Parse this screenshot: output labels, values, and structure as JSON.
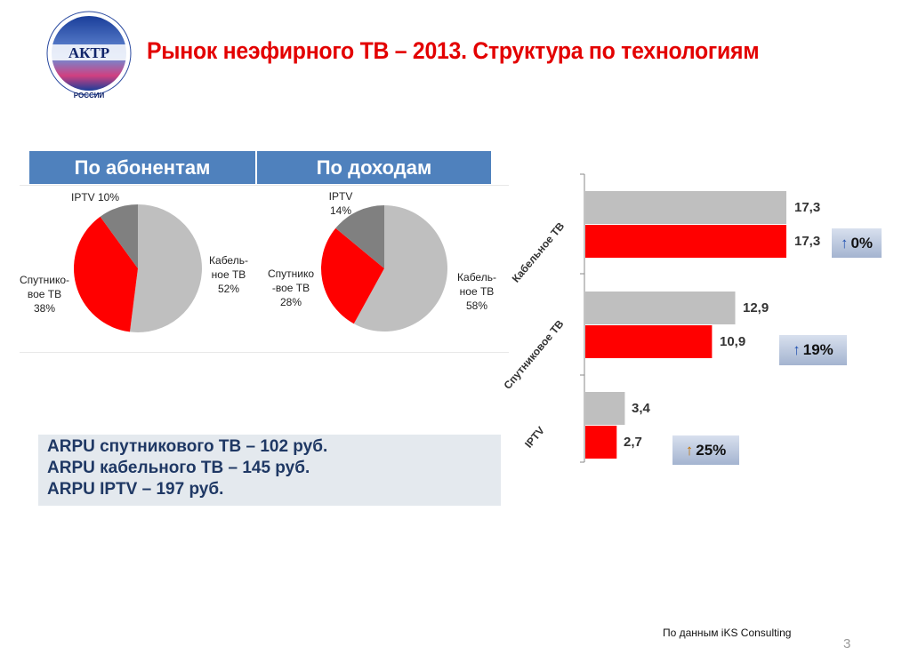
{
  "title": "Рынок неэфирного ТВ – 2013. Структура по технологиям",
  "logo": {
    "text_main": "АКТР",
    "text_arc": "АССОЦИАЦИЯ КАБЕЛЬНОГО ТЕЛЕВИДЕНИЯ",
    "text_bottom": "РОССИИ"
  },
  "headers": [
    "По абонентам",
    "По доходам"
  ],
  "colors": {
    "cable": "#bfbfbf",
    "satellite": "#ff0000",
    "iptv": "#808080",
    "header": "#4f81bd",
    "title": "#e30000"
  },
  "chart_data": [
    {
      "type": "pie",
      "title": "По абонентам",
      "slices": [
        {
          "label": "Кабельное ТВ",
          "value": 52,
          "text": [
            "Кабель-",
            "ное ТВ",
            "52%"
          ],
          "color": "#bfbfbf"
        },
        {
          "label": "Спутниковое ТВ",
          "value": 38,
          "text": [
            "Спутнико-",
            "вое ТВ",
            "38%"
          ],
          "color": "#ff0000"
        },
        {
          "label": "IPTV",
          "value": 10,
          "text": [
            "IPTV 10%"
          ],
          "color": "#808080"
        }
      ]
    },
    {
      "type": "pie",
      "title": "По доходам",
      "slices": [
        {
          "label": "Кабельное ТВ",
          "value": 58,
          "text": [
            "Кабель-",
            "ное ТВ",
            "58%"
          ],
          "color": "#bfbfbf"
        },
        {
          "label": "Спутниковое ТВ",
          "value": 28,
          "text": [
            "Спутнико",
            "-вое ТВ",
            "28%"
          ],
          "color": "#ff0000"
        },
        {
          "label": "IPTV",
          "value": 14,
          "text": [
            "IPTV",
            "14%"
          ],
          "color": "#808080"
        }
      ]
    },
    {
      "type": "bar",
      "orientation": "horizontal",
      "categories": [
        "Кабельное ТВ",
        "Спутниковое ТВ",
        "IPTV"
      ],
      "series": [
        {
          "values": [
            17.3,
            12.9,
            3.4
          ],
          "labels": [
            "17,3",
            "12,9",
            "3,4"
          ],
          "color": "#bfbfbf"
        },
        {
          "values": [
            17.3,
            10.9,
            2.7
          ],
          "labels": [
            "17,3",
            "10,9",
            "2,7"
          ],
          "color": "#ff0000"
        }
      ],
      "annotations": [
        "0%",
        "19%",
        "25%"
      ],
      "annotation_arrow": "↑",
      "xlim": [
        0,
        20
      ],
      "grid": false
    }
  ],
  "arpu": [
    "ARPU спутникового ТВ – 102 руб.",
    "ARPU кабельного ТВ – 145 руб.",
    "ARPU IPTV – 197 руб."
  ],
  "source": "По данным iKS Consulting",
  "page_number": "3"
}
